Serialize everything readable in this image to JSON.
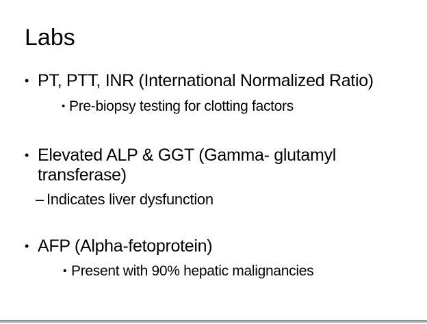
{
  "slide": {
    "title": "Labs",
    "accent_bar_color": "#a4aaaf",
    "items": [
      {
        "level": 1,
        "marker": "•",
        "lines": [
          "PT, PTT, INR (International Normalized Ratio)"
        ]
      },
      {
        "level": 2,
        "marker": "•",
        "lines": [
          "Pre-biopsy testing for clotting factors"
        ]
      },
      {
        "level": 1,
        "marker": "•",
        "lines": [
          "Elevated ALP & GGT (Gamma- glutamyl",
          "transferase)"
        ]
      },
      {
        "level": 2,
        "marker": "–",
        "lines": [
          "Indicates liver dysfunction"
        ]
      },
      {
        "level": 1,
        "marker": "•",
        "lines": [
          "AFP (Alpha-fetoprotein)"
        ]
      },
      {
        "level": 2,
        "marker": "•",
        "lines": [
          "Present with 90% hepatic malignancies"
        ]
      }
    ]
  }
}
